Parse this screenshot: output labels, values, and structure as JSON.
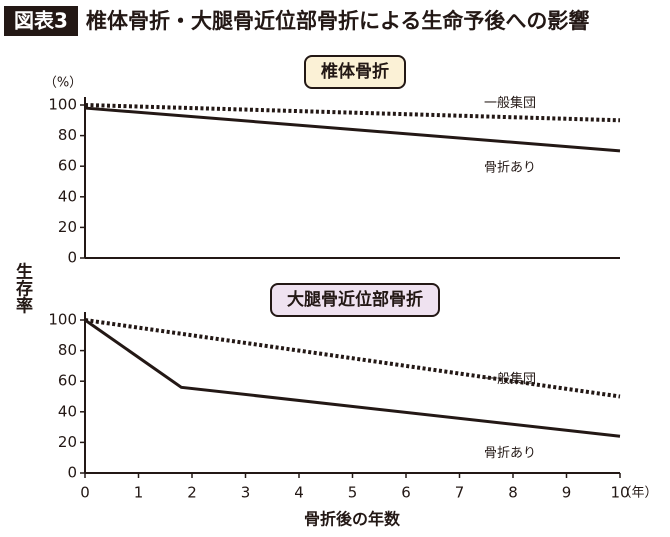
{
  "header": {
    "badge": "図表3",
    "title": "椎体骨折・大腿骨近位部骨折による生命予後への影響",
    "y_label": "生存率"
  },
  "chart_data": [
    {
      "type": "line",
      "title": "椎体骨折",
      "title_color": "#fbf1d6",
      "y_unit": "（%）",
      "xlim": [
        0,
        10
      ],
      "ylim": [
        0,
        100
      ],
      "yticks": [
        0,
        20,
        40,
        60,
        80,
        100
      ],
      "series": [
        {
          "name": "一般集団",
          "color": "#231815",
          "style": "dotted",
          "x": [
            0,
            10
          ],
          "values": [
            100,
            90
          ]
        },
        {
          "name": "骨折あり",
          "color": "#231815",
          "style": "solid",
          "x": [
            0,
            10
          ],
          "values": [
            98,
            70
          ]
        }
      ]
    },
    {
      "type": "line",
      "title": "大腿骨近位部骨折",
      "title_color": "#efe2f0",
      "xlabel": "骨折後の年数",
      "x_unit": "（年）",
      "xlim": [
        0,
        10
      ],
      "xticks": [
        0,
        1,
        2,
        3,
        4,
        5,
        6,
        7,
        8,
        9,
        10
      ],
      "ylim": [
        0,
        100
      ],
      "yticks": [
        0,
        20,
        40,
        60,
        80,
        100
      ],
      "series": [
        {
          "name": "一般集団",
          "color": "#231815",
          "style": "dotted",
          "x": [
            0,
            10
          ],
          "values": [
            100,
            50
          ]
        },
        {
          "name": "骨折あり",
          "color": "#231815",
          "style": "solid",
          "x": [
            0,
            1.8,
            10
          ],
          "values": [
            100,
            56,
            24
          ]
        }
      ]
    }
  ]
}
